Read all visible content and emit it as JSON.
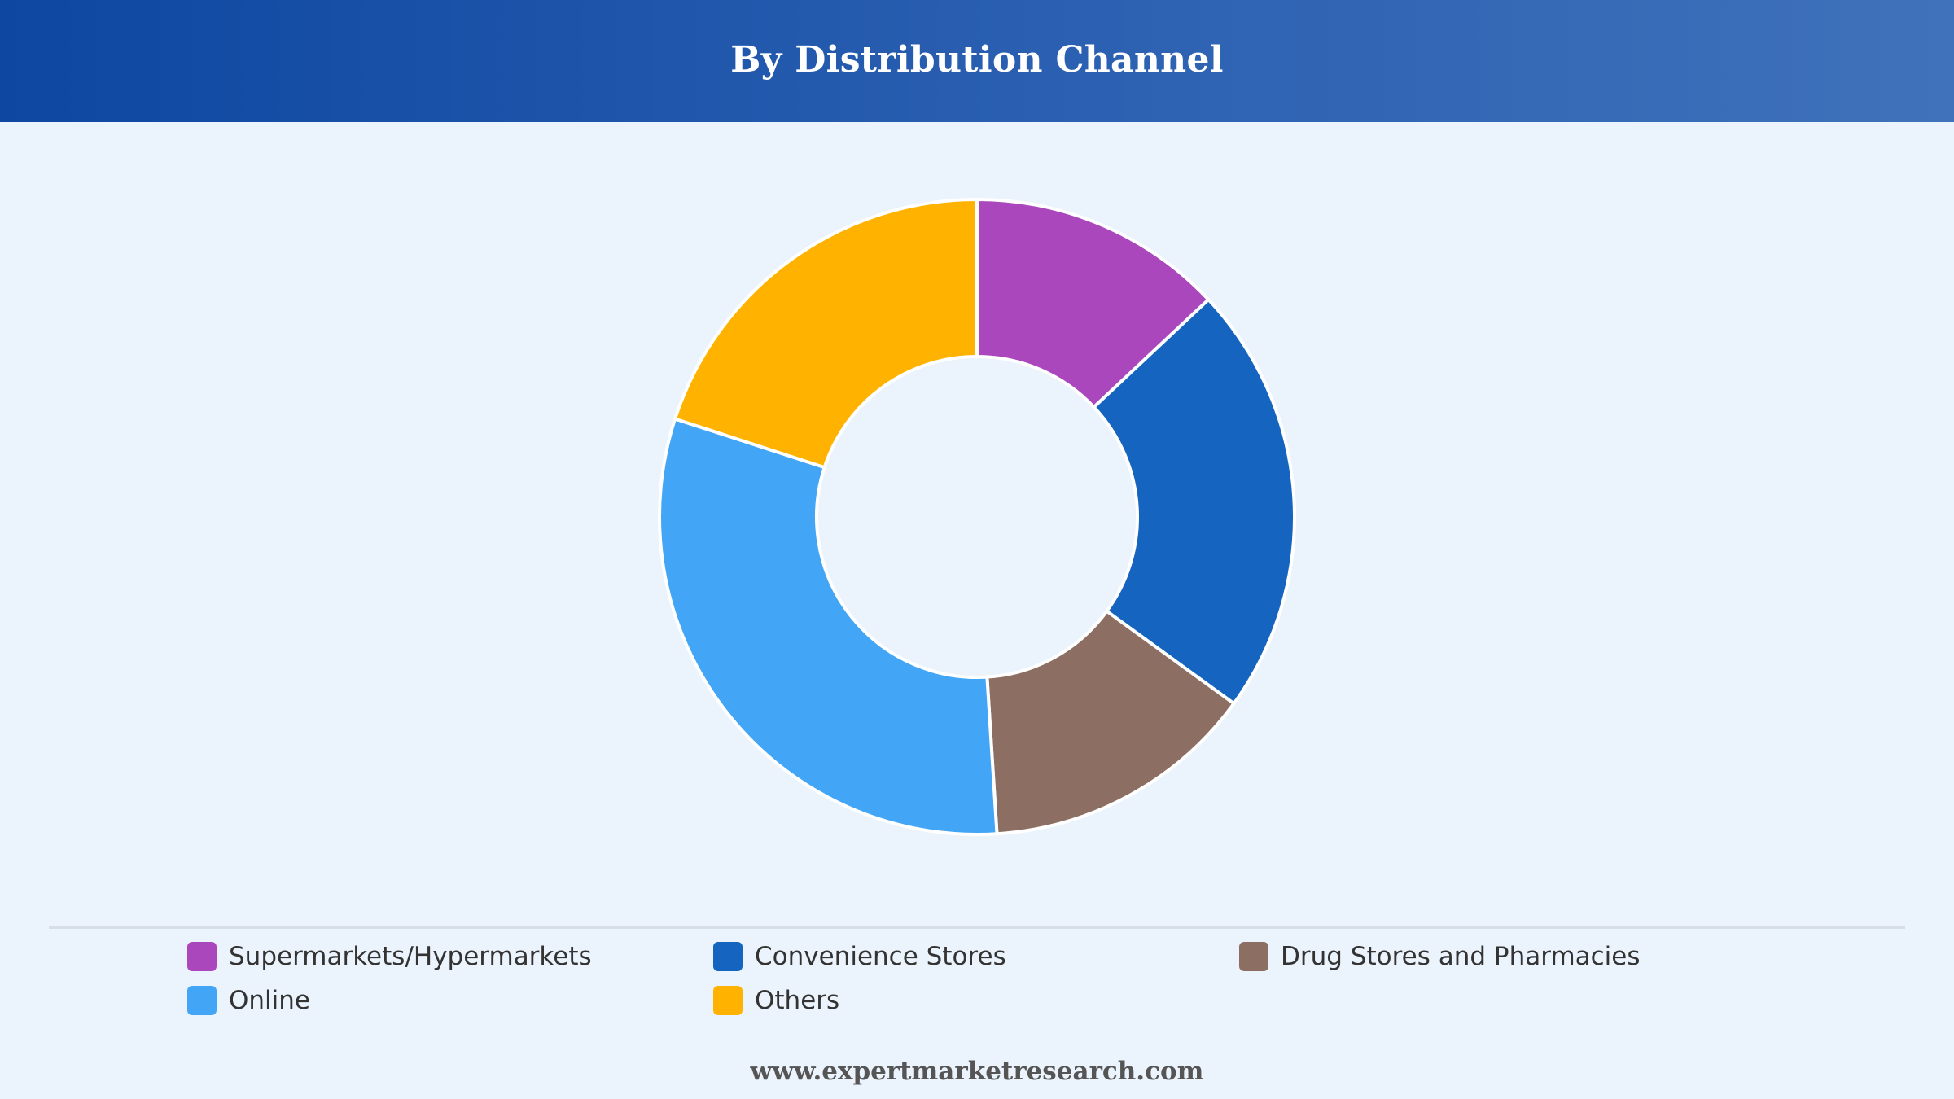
{
  "header": {
    "title": "By Distribution Channel"
  },
  "chart_data": {
    "type": "pie",
    "variant": "donut",
    "title": "By Distribution Channel",
    "categories": [
      "Supermarkets/Hypermarkets",
      "Convenience Stores",
      "Drug Stores and Pharmacies",
      "Online",
      "Others"
    ],
    "values": [
      13,
      22,
      14,
      31,
      20
    ],
    "colors": [
      "#ab47bc",
      "#1565c0",
      "#8d6e63",
      "#42a5f5",
      "#ffb300"
    ],
    "start_angle_deg": 0,
    "direction": "clockwise",
    "legend_position": "bottom",
    "show_value_labels": false
  },
  "legend": {
    "items": [
      {
        "label": "Supermarkets/Hypermarkets",
        "color": "#ab47bc"
      },
      {
        "label": "Convenience Stores",
        "color": "#1565c0"
      },
      {
        "label": "Drug Stores and Pharmacies",
        "color": "#8d6e63"
      },
      {
        "label": "Online",
        "color": "#42a5f5"
      },
      {
        "label": "Others",
        "color": "#ffb300"
      }
    ]
  },
  "footer": {
    "source": "www.expertmarketresearch.com"
  }
}
